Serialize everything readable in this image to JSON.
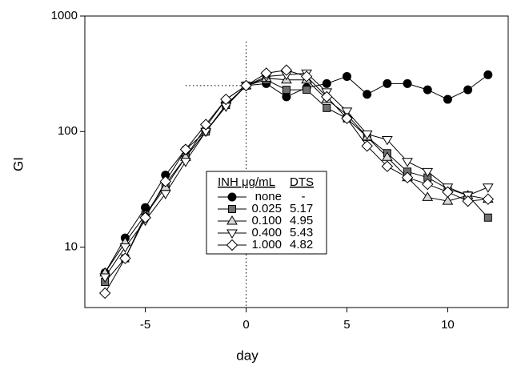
{
  "chart_data": {
    "type": "line",
    "xlabel": "day",
    "ylabel": "GI",
    "log_y": true,
    "xlim": [
      -8,
      13
    ],
    "ylim": [
      3,
      1000
    ],
    "xticks": [
      -5,
      0,
      5,
      10
    ],
    "yticks": [
      10,
      100,
      1000
    ],
    "legend_header": [
      "INH μg/mL",
      "DTS"
    ],
    "guide": {
      "x": 0,
      "y": 250,
      "x_from": -3,
      "y_to": 600
    },
    "x": [
      -7,
      -6,
      -5,
      -4,
      -3,
      -2,
      -1,
      0,
      1,
      2,
      3,
      4,
      5,
      6,
      7,
      8,
      9,
      10,
      11,
      12
    ],
    "series": [
      {
        "name": "none",
        "dts": "-",
        "color": "#000000",
        "marker": "circle",
        "marker_fill": "#000000",
        "values": [
          6,
          12,
          22,
          42,
          70,
          100,
          170,
          250,
          260,
          200,
          240,
          260,
          300,
          210,
          260,
          260,
          230,
          190,
          230,
          310
        ]
      },
      {
        "name": "0.025",
        "dts": "5.17",
        "color": "#000000",
        "marker": "square",
        "marker_fill": "#707070",
        "values": [
          5,
          8,
          19,
          35,
          60,
          100,
          170,
          250,
          280,
          230,
          230,
          160,
          130,
          90,
          65,
          45,
          40,
          32,
          28,
          18
        ]
      },
      {
        "name": "0.100",
        "dts": "4.95",
        "color": "#000000",
        "marker": "triangle-up",
        "marker_fill": "#d8d8d8",
        "values": [
          6,
          11,
          19,
          33,
          60,
          110,
          190,
          250,
          290,
          280,
          280,
          190,
          140,
          90,
          60,
          40,
          27,
          25,
          28,
          26
        ]
      },
      {
        "name": "0.400",
        "dts": "5.43",
        "color": "#000000",
        "marker": "triangle-down",
        "marker_fill": "#ffffff",
        "values": [
          5.5,
          10,
          17,
          29,
          55,
          100,
          165,
          250,
          300,
          310,
          320,
          220,
          150,
          95,
          85,
          55,
          45,
          33,
          28,
          33
        ]
      },
      {
        "name": "1.000",
        "dts": "4.82",
        "color": "#000000",
        "marker": "diamond",
        "marker_fill": "#ffffff",
        "values": [
          4,
          8,
          18,
          37,
          70,
          115,
          190,
          250,
          320,
          340,
          300,
          200,
          130,
          75,
          50,
          40,
          35,
          30,
          25,
          26
        ]
      }
    ]
  }
}
